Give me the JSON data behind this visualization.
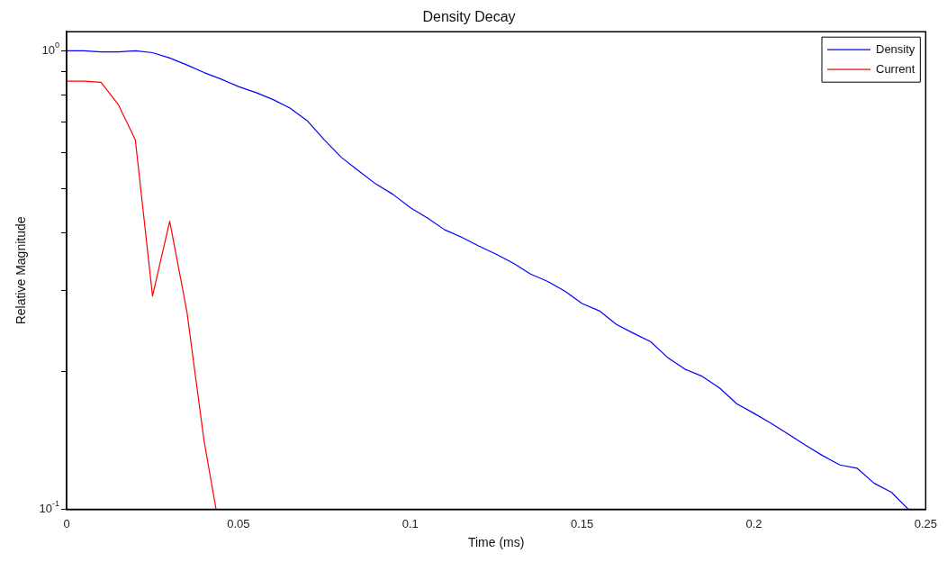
{
  "chart_data": {
    "type": "line",
    "title": "Density Decay",
    "xlabel": "Time (ms)",
    "ylabel": "Relative Magnitude",
    "log": "y",
    "legend": "top right",
    "marker": "none",
    "line_style": "solid",
    "xlim": [
      0,
      0.25
    ],
    "xticks": [
      0,
      0.05,
      0.1,
      0.15,
      0.2,
      0.25
    ],
    "ylim": [
      0.1,
      1.1
    ],
    "yticks": [
      {
        "value": 0.1,
        "label": "10$^{-1}$"
      },
      {
        "value": 0.2,
        "label": null
      },
      {
        "value": 0.3,
        "label": null
      },
      {
        "value": 0.4,
        "label": null
      },
      {
        "value": 0.5,
        "label": null
      },
      {
        "value": 0.6,
        "label": null
      },
      {
        "value": 0.7,
        "label": null
      },
      {
        "value": 0.8,
        "label": null
      },
      {
        "value": 0.9,
        "label": null
      },
      {
        "value": 1,
        "label": "10$^{0}$"
      }
    ],
    "series": [
      {
        "name": "Density",
        "color": "#0000ff",
        "x": [
          0,
          0.005,
          0.01,
          0.015,
          0.02,
          0.025,
          0.03,
          0.035,
          0.04,
          0.045,
          0.05,
          0.055,
          0.06,
          0.065,
          0.07,
          0.075,
          0.08,
          0.085,
          0.09,
          0.095,
          0.1,
          0.105,
          0.11,
          0.115,
          0.12,
          0.125,
          0.13,
          0.135,
          0.14,
          0.145,
          0.15,
          0.155,
          0.16,
          0.165,
          0.17,
          0.175,
          0.18,
          0.185,
          0.19,
          0.195,
          0.2,
          0.205,
          0.21,
          0.215,
          0.22,
          0.225,
          0.23,
          0.235,
          0.24,
          0.245
        ],
        "values": [
          1.0,
          1.0,
          0.994,
          0.994,
          1.0,
          0.99,
          0.964,
          0.931,
          0.896,
          0.867,
          0.835,
          0.811,
          0.783,
          0.75,
          0.704,
          0.639,
          0.585,
          0.547,
          0.512,
          0.486,
          0.455,
          0.432,
          0.407,
          0.392,
          0.375,
          0.36,
          0.344,
          0.326,
          0.314,
          0.299,
          0.281,
          0.271,
          0.253,
          0.242,
          0.232,
          0.214,
          0.202,
          0.195,
          0.184,
          0.17,
          0.162,
          0.154,
          0.146,
          0.138,
          0.131,
          0.125,
          0.123,
          0.114,
          0.109,
          0.1
        ]
      },
      {
        "name": "Current",
        "color": "#ff0000",
        "x": [
          0,
          0.005,
          0.01,
          0.015,
          0.02,
          0.025,
          0.03,
          0.035,
          0.04,
          0.0435
        ],
        "values": [
          0.858,
          0.858,
          0.853,
          0.764,
          0.639,
          0.292,
          0.425,
          0.27,
          0.141,
          0.1
        ]
      }
    ]
  }
}
